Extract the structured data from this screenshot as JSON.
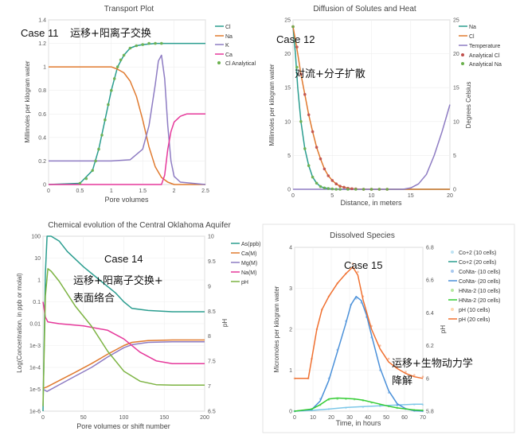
{
  "charts": [
    {
      "title": "Transport Plot",
      "case_label": "Case 11",
      "cn_label": "运移+阳离子交换",
      "xlabel": "Pore volumes",
      "ylabel": "Millimoles per kilogram water",
      "x_ticks": [
        "0",
        "0.5",
        "1",
        "1.5",
        "2",
        "2.5"
      ],
      "y_ticks": [
        "0",
        "0.2",
        "0.4",
        "0.6",
        "0.8",
        "1",
        "1.2",
        "1.4"
      ],
      "legend": [
        "Cl",
        "Na",
        "K",
        "Ca",
        "Cl Analytical"
      ]
    },
    {
      "title": "Diffusion of Solutes and Heat",
      "case_label": "Case 12",
      "cn_label": "对流+分子扩散",
      "xlabel": "Distance, in meters",
      "ylabel": "Millimoles per kilogram water",
      "y2label": "Degrees Celsius",
      "x_ticks": [
        "0",
        "5",
        "10",
        "15",
        "20"
      ],
      "y_ticks": [
        "0",
        "5",
        "10",
        "15",
        "20",
        "25"
      ],
      "y2_ticks": [
        "0",
        "5",
        "10",
        "15",
        "20",
        "25"
      ],
      "legend": [
        "Na",
        "Cl",
        "Temperature",
        "Analytical Cl",
        "Analytical Na"
      ]
    },
    {
      "title": "Chemical evolution of the Central Oklahoma Aquifer",
      "case_label": "Case 14",
      "cn_label_1": "运移+阳离子交换+",
      "cn_label_2": "表面络合",
      "xlabel": "Pore volumes or shift number",
      "ylabel": "Log(Concentration, in ppb or molal)",
      "y2label": "pH",
      "x_ticks": [
        "0",
        "50",
        "100",
        "150",
        "200"
      ],
      "y_ticks": [
        "100",
        "10",
        "1",
        "0.1",
        "0.01",
        "1e-3",
        "1e-4",
        "1e-5",
        "1e-6"
      ],
      "y2_ticks": [
        "10",
        "9.5",
        "9",
        "8.5",
        "8",
        "7.5",
        "7",
        "6.5"
      ],
      "legend": [
        "As(ppb)",
        "Ca(M)",
        "Mg(M)",
        "Na(M)",
        "pH"
      ]
    },
    {
      "title": "Dissolved Species",
      "case_label": "Case 15",
      "cn_label_1": "运移+生物动力学",
      "cn_label_2": "降解",
      "xlabel": "Time, in hours",
      "ylabel": "Micromoles per kilogram water",
      "y2label": "pH",
      "x_ticks": [
        "0",
        "10",
        "20",
        "30",
        "40",
        "50",
        "60",
        "70"
      ],
      "y_ticks": [
        "0",
        "1",
        "2",
        "3",
        "4"
      ],
      "y2_ticks": [
        "5.8",
        "6",
        "6.2",
        "6.4",
        "6.6",
        "6.8"
      ],
      "legend": [
        "Co+2 (10 cells)",
        "Co+2 (20 cells)",
        "CoNta- (10 cells)",
        "CoNta- (20 cells)",
        "HNta-2 (10 cells)",
        "HNta-2 (20 cells)",
        "pH (10 cells)",
        "pH (20 cells)"
      ]
    }
  ],
  "chart_data": [
    {
      "type": "line",
      "title": "Transport Plot",
      "xlim": [
        0,
        2.5
      ],
      "ylim": [
        0,
        1.4
      ],
      "colors": {
        "Cl": "#2a9d8f",
        "Na": "#e07a2f",
        "K": "#8e7cc3",
        "Ca": "#e6399b",
        "Cl Analytical": "#6ab04c"
      },
      "series": [
        {
          "name": "Cl",
          "x": [
            0,
            0.5,
            0.7,
            0.8,
            0.9,
            1.0,
            1.1,
            1.2,
            1.3,
            1.4,
            1.5,
            1.7,
            2.0,
            2.5
          ],
          "y": [
            0,
            0.01,
            0.12,
            0.3,
            0.55,
            0.8,
            1.0,
            1.1,
            1.16,
            1.18,
            1.19,
            1.2,
            1.2,
            1.2
          ]
        },
        {
          "name": "Na",
          "x": [
            0,
            0.5,
            1.0,
            1.1,
            1.2,
            1.3,
            1.4,
            1.5,
            1.6,
            1.7,
            1.8,
            1.9,
            2.0,
            2.5
          ],
          "y": [
            1.0,
            1.0,
            1.0,
            0.98,
            0.95,
            0.88,
            0.75,
            0.55,
            0.32,
            0.15,
            0.06,
            0.02,
            0.0,
            0.0
          ]
        },
        {
          "name": "K",
          "x": [
            0,
            0.5,
            1.0,
            1.3,
            1.5,
            1.6,
            1.7,
            1.75,
            1.8,
            1.85,
            1.9,
            1.95,
            2.0,
            2.1,
            2.5
          ],
          "y": [
            0.2,
            0.2,
            0.2,
            0.21,
            0.3,
            0.5,
            0.85,
            1.05,
            1.1,
            0.9,
            0.5,
            0.2,
            0.07,
            0.02,
            0.0
          ]
        },
        {
          "name": "Ca",
          "x": [
            0,
            1.8,
            1.85,
            1.9,
            1.95,
            2.0,
            2.1,
            2.2,
            2.5
          ],
          "y": [
            0,
            0,
            0.08,
            0.3,
            0.45,
            0.53,
            0.58,
            0.6,
            0.6
          ]
        },
        {
          "name": "Cl Analytical",
          "x": [
            0.5,
            0.6,
            0.7,
            0.75,
            0.8,
            0.85,
            0.9,
            0.95,
            1.0,
            1.05,
            1.1,
            1.15,
            1.2,
            1.3,
            1.4,
            1.5,
            1.6,
            1.7,
            1.8
          ],
          "y": [
            0.01,
            0.05,
            0.12,
            0.2,
            0.3,
            0.42,
            0.55,
            0.68,
            0.8,
            0.9,
            1.0,
            1.06,
            1.1,
            1.16,
            1.18,
            1.19,
            1.2,
            1.2,
            1.2
          ]
        }
      ]
    },
    {
      "type": "line",
      "title": "Diffusion of Solutes and Heat",
      "xlim": [
        0,
        20
      ],
      "ylim": [
        0,
        25
      ],
      "y2lim": [
        0,
        25
      ],
      "colors": {
        "Na": "#2a9d8f",
        "Cl": "#e07a2f",
        "Temperature": "#8e7cc3",
        "Analytical Cl": "#c0504d",
        "Analytical Na": "#6ab04c"
      },
      "series": [
        {
          "name": "Na",
          "x": [
            0,
            0.3,
            0.6,
            1,
            1.5,
            2,
            2.5,
            3,
            3.5,
            4,
            5,
            6,
            10,
            20
          ],
          "y": [
            24,
            20,
            15,
            10,
            6,
            3.5,
            1.8,
            0.9,
            0.4,
            0.2,
            0.05,
            0,
            0,
            0
          ]
        },
        {
          "name": "Cl",
          "x": [
            0,
            0.3,
            0.6,
            1,
            1.5,
            2,
            2.5,
            3,
            3.5,
            4,
            4.5,
            5,
            5.5,
            6,
            7,
            8,
            10,
            15,
            20
          ],
          "y": [
            24,
            22,
            20,
            17,
            14,
            11,
            8.5,
            6.2,
            4.5,
            3,
            2,
            1.3,
            0.8,
            0.45,
            0.15,
            0.05,
            0,
            0,
            0
          ]
        },
        {
          "name": "Temperature",
          "axis": "y2",
          "x": [
            0,
            14,
            15,
            16,
            17,
            18,
            19,
            19.5,
            20
          ],
          "y": [
            0,
            0,
            0.2,
            0.8,
            2.2,
            5,
            8.5,
            10.5,
            12.5
          ]
        },
        {
          "name": "Analytical Cl",
          "x": [
            0,
            0.5,
            1,
            1.5,
            2,
            2.5,
            3,
            3.5,
            4,
            4.5,
            5,
            5.5,
            6,
            6.5,
            7,
            7.5,
            8,
            9,
            10,
            11,
            12
          ],
          "y": [
            24,
            21,
            17,
            14,
            11,
            8.5,
            6.2,
            4.5,
            3,
            2,
            1.3,
            0.8,
            0.45,
            0.3,
            0.15,
            0.08,
            0.05,
            0,
            0,
            0,
            0
          ]
        },
        {
          "name": "Analytical Na",
          "x": [
            0,
            0.5,
            1,
            1.5,
            2,
            2.5,
            3,
            3.5,
            4,
            4.5,
            5,
            5.5,
            6,
            7,
            8,
            9,
            10,
            11,
            12
          ],
          "y": [
            24,
            18,
            10,
            6,
            3.5,
            1.8,
            0.9,
            0.4,
            0.2,
            0.1,
            0.05,
            0,
            0,
            0,
            0,
            0,
            0,
            0,
            0
          ]
        }
      ]
    },
    {
      "type": "line",
      "title": "Chemical evolution of the Central Oklahoma Aquifer",
      "xlim": [
        0,
        200
      ],
      "ylim_log": [
        1e-06,
        100
      ],
      "y2lim": [
        6.5,
        10
      ],
      "colors": {
        "As(ppb)": "#2a9d8f",
        "Ca(M)": "#e07a2f",
        "Mg(M)": "#8e7cc3",
        "Na(M)": "#e6399b",
        "pH": "#7cb342"
      },
      "series": [
        {
          "name": "As(ppb)",
          "x": [
            0,
            3,
            5,
            10,
            20,
            30,
            50,
            70,
            90,
            100,
            110,
            130,
            160,
            200
          ],
          "y": [
            1e-06,
            2,
            100,
            100,
            60,
            20,
            4,
            1.0,
            0.25,
            0.1,
            0.05,
            0.04,
            0.035,
            0.035
          ]
        },
        {
          "name": "Ca(M)",
          "x": [
            0,
            5,
            20,
            40,
            60,
            80,
            100,
            110,
            130,
            160,
            200
          ],
          "y": [
            1.1e-05,
            1.3e-05,
            2.5e-05,
            6e-05,
            0.00015,
            0.0004,
            0.001,
            0.0014,
            0.0017,
            0.0018,
            0.0018
          ]
        },
        {
          "name": "Mg(M)",
          "x": [
            0,
            5,
            20,
            40,
            60,
            80,
            100,
            110,
            130,
            160,
            200
          ],
          "y": [
            1e-05,
            8e-06,
            1.6e-05,
            4e-05,
            0.0001,
            0.0003,
            0.0008,
            0.0011,
            0.0014,
            0.0015,
            0.0015
          ]
        },
        {
          "name": "Na(M)",
          "x": [
            0,
            3,
            6,
            20,
            50,
            80,
            100,
            120,
            140,
            160,
            200
          ],
          "y": [
            0.1,
            0.02,
            0.012,
            0.01,
            0.008,
            0.005,
            0.002,
            0.0005,
            0.0002,
            0.00015,
            0.00015
          ]
        },
        {
          "name": "pH",
          "axis": "y2",
          "x": [
            0,
            3,
            6,
            10,
            20,
            40,
            60,
            80,
            100,
            120,
            140,
            160,
            200
          ],
          "y": [
            6.6,
            8.8,
            9.35,
            9.3,
            9.1,
            8.6,
            8.2,
            7.7,
            7.3,
            7.1,
            7.03,
            7.02,
            7.02
          ]
        }
      ]
    },
    {
      "type": "line",
      "title": "Dissolved Species",
      "xlim": [
        0,
        75
      ],
      "ylim": [
        0,
        4
      ],
      "y2lim": [
        5.8,
        6.8
      ],
      "colors": {
        "Co+2": "#7cc7e8",
        "CoNta-": "#4a90d9",
        "HNta-2": "#33cc33",
        "pH": "#f07030"
      },
      "series": [
        {
          "name": "Co+2 (10 cells)",
          "x": [
            0,
            10,
            20,
            30,
            40,
            50,
            60,
            70,
            75
          ],
          "y": [
            0,
            0.02,
            0.05,
            0.08,
            0.1,
            0.12,
            0.14,
            0.16,
            0.16
          ]
        },
        {
          "name": "Co+2 (20 cells)",
          "x": [
            0,
            10,
            20,
            30,
            40,
            50,
            60,
            70,
            75
          ],
          "y": [
            0,
            0.02,
            0.05,
            0.09,
            0.11,
            0.13,
            0.15,
            0.17,
            0.17
          ]
        },
        {
          "name": "CoNta- (10 cells)",
          "x": [
            0,
            10,
            15,
            20,
            25,
            30,
            33,
            36,
            39,
            42,
            45,
            50,
            55,
            60,
            65,
            70,
            75
          ],
          "y": [
            0,
            0.05,
            0.3,
            0.8,
            1.5,
            2.2,
            2.6,
            2.75,
            2.65,
            2.3,
            1.8,
            1.0,
            0.45,
            0.15,
            0.05,
            0.01,
            0
          ]
        },
        {
          "name": "CoNta- (20 cells)",
          "x": [
            0,
            10,
            15,
            20,
            25,
            30,
            33,
            36,
            39,
            42,
            45,
            50,
            55,
            60,
            65,
            70,
            75
          ],
          "y": [
            0,
            0.04,
            0.25,
            0.75,
            1.45,
            2.15,
            2.6,
            2.8,
            2.7,
            2.35,
            1.85,
            1.05,
            0.5,
            0.18,
            0.06,
            0.01,
            0
          ]
        },
        {
          "name": "HNta-2 (10 cells)",
          "x": [
            0,
            10,
            15,
            20,
            25,
            30,
            35,
            40,
            45,
            50,
            55,
            60,
            70,
            75
          ],
          "y": [
            0,
            0.05,
            0.15,
            0.28,
            0.3,
            0.3,
            0.29,
            0.26,
            0.21,
            0.16,
            0.12,
            0.08,
            0.03,
            0.02
          ]
        },
        {
          "name": "HNta-2 (20 cells)",
          "x": [
            0,
            10,
            15,
            20,
            25,
            30,
            35,
            40,
            45,
            50,
            55,
            60,
            70,
            75
          ],
          "y": [
            0,
            0.05,
            0.16,
            0.3,
            0.32,
            0.31,
            0.3,
            0.27,
            0.22,
            0.17,
            0.12,
            0.08,
            0.03,
            0.02
          ]
        },
        {
          "name": "pH (10 cells)",
          "axis": "y2",
          "x": [
            0,
            8,
            10,
            13,
            16,
            20,
            25,
            30,
            34,
            37,
            40,
            45,
            50,
            55,
            60,
            65,
            70,
            75
          ],
          "y": [
            6.0,
            6.0,
            6.12,
            6.3,
            6.42,
            6.5,
            6.58,
            6.64,
            6.7,
            6.65,
            6.5,
            6.32,
            6.2,
            6.12,
            6.07,
            6.04,
            6.02,
            6.01
          ]
        },
        {
          "name": "pH (20 cells)",
          "axis": "y2",
          "x": [
            0,
            8,
            10,
            13,
            16,
            20,
            25,
            30,
            34,
            37,
            40,
            45,
            50,
            55,
            60,
            65,
            70,
            75
          ],
          "y": [
            6.0,
            6.0,
            6.12,
            6.3,
            6.42,
            6.5,
            6.58,
            6.64,
            6.68,
            6.63,
            6.48,
            6.3,
            6.18,
            6.1,
            6.06,
            6.03,
            6.01,
            6.0
          ]
        }
      ]
    }
  ]
}
